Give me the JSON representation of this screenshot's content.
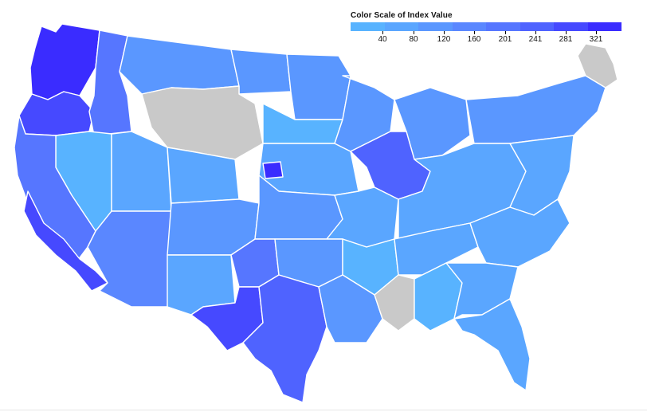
{
  "legend": {
    "title": "Color Scale of Index Value",
    "ticks": [
      "40",
      "80",
      "120",
      "160",
      "201",
      "241",
      "281",
      "321"
    ],
    "colors": [
      "#58b3ff",
      "#5aa6ff",
      "#5a97ff",
      "#5a87ff",
      "#5676ff",
      "#4f63ff",
      "#4649ff",
      "#3a2cff"
    ]
  },
  "map": {
    "no_data_color": "#c9c9c9",
    "border_color": "#ffffff",
    "regions": [
      {
        "name": "region-pacific-northwest",
        "level": 8
      },
      {
        "name": "region-oregon-west",
        "level": 7
      },
      {
        "name": "region-idaho-north",
        "level": 5
      },
      {
        "name": "region-montana",
        "level": 3
      },
      {
        "name": "region-north-dakota",
        "level": 3
      },
      {
        "name": "region-minnesota",
        "level": 3
      },
      {
        "name": "region-northern-plains-nodata",
        "level": 0
      },
      {
        "name": "region-nevada",
        "level": 1
      },
      {
        "name": "region-utah",
        "level": 2
      },
      {
        "name": "region-wyoming",
        "level": 2
      },
      {
        "name": "region-south-dakota",
        "level": 1
      },
      {
        "name": "region-iowa",
        "level": 2
      },
      {
        "name": "region-wisconsin",
        "level": 3
      },
      {
        "name": "region-michigan",
        "level": 3
      },
      {
        "name": "region-northeast",
        "level": 3
      },
      {
        "name": "region-california",
        "level": 5
      },
      {
        "name": "region-california-south",
        "level": 7
      },
      {
        "name": "region-arizona",
        "level": 4
      },
      {
        "name": "region-colorado",
        "level": 3
      },
      {
        "name": "region-kansas",
        "level": 3
      },
      {
        "name": "region-missouri",
        "level": 2
      },
      {
        "name": "region-illinois",
        "level": 6
      },
      {
        "name": "region-ohio-valley",
        "level": 2
      },
      {
        "name": "region-mid-atlantic",
        "level": 2
      },
      {
        "name": "region-new-mexico",
        "level": 2
      },
      {
        "name": "region-texas-panhandle",
        "level": 5
      },
      {
        "name": "region-oklahoma",
        "level": 3
      },
      {
        "name": "region-arkansas",
        "level": 1
      },
      {
        "name": "region-tennessee",
        "level": 2
      },
      {
        "name": "region-carolinas",
        "level": 2
      },
      {
        "name": "region-texas-west",
        "level": 7
      },
      {
        "name": "region-texas-south",
        "level": 6
      },
      {
        "name": "region-louisiana",
        "level": 3
      },
      {
        "name": "region-mississippi-nodata",
        "level": 0
      },
      {
        "name": "region-alabama",
        "level": 1
      },
      {
        "name": "region-georgia",
        "level": 2
      },
      {
        "name": "region-florida",
        "level": 2
      },
      {
        "name": "region-nebraska-hot",
        "level": 8
      },
      {
        "name": "region-new-england-nodata",
        "level": 0
      }
    ]
  }
}
